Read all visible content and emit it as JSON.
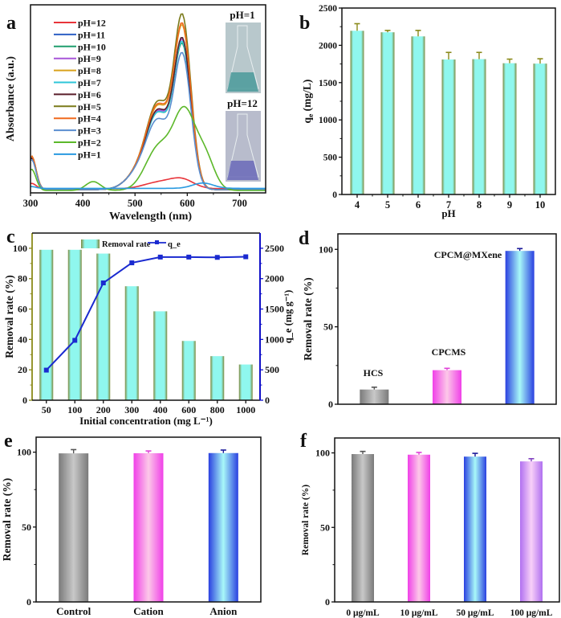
{
  "figure": {
    "panel_labels": [
      "a",
      "b",
      "c",
      "d",
      "e",
      "f"
    ]
  },
  "colors": {
    "cyan_fill": "#8ff7ee",
    "olive_edge": "#7e8a3e",
    "blue_axis": "#1010c8",
    "olive_axis": "#8a8a1a",
    "gray_bar": "#a8a8a8",
    "pink_bar": "#f59af0",
    "blue_bar": "#4a6bf0",
    "violet_bar": "#d8a8f8"
  },
  "chart_data": [
    {
      "id": "a",
      "type": "line",
      "title": "",
      "xlabel": "Wavelength (nm)",
      "ylabel": "Absorbance (a.u.)",
      "xlim": [
        300,
        750
      ],
      "xticks": [
        300,
        400,
        500,
        600,
        700
      ],
      "yticks": [],
      "legend_placement": "top-left",
      "inset_labels": [
        "pH=1",
        "pH=12"
      ],
      "series": [
        {
          "name": "pH=12",
          "color": "#e8343a",
          "peak_nm": 590,
          "peak": 0.05,
          "shoulder": 0.035,
          "edge300": 0.06
        },
        {
          "name": "pH=11",
          "color": "#2d5fc4",
          "peak_nm": 590,
          "peak": 0.82,
          "shoulder": 0.53,
          "edge300": 0.18
        },
        {
          "name": "pH=10",
          "color": "#1f9e6e",
          "peak_nm": 590,
          "peak": 0.79,
          "shoulder": 0.52,
          "edge300": 0.18
        },
        {
          "name": "pH=9",
          "color": "#a855d8",
          "peak_nm": 590,
          "peak": 0.81,
          "shoulder": 0.53,
          "edge300": 0.18
        },
        {
          "name": "pH=8",
          "color": "#d9a21c",
          "peak_nm": 590,
          "peak": 0.89,
          "shoulder": 0.57,
          "edge300": 0.19
        },
        {
          "name": "pH=7",
          "color": "#2ec6d8",
          "peak_nm": 590,
          "peak": 0.8,
          "shoulder": 0.52,
          "edge300": 0.18
        },
        {
          "name": "pH=6",
          "color": "#5a1e2a",
          "peak_nm": 590,
          "peak": 0.82,
          "shoulder": 0.54,
          "edge300": 0.18
        },
        {
          "name": "pH=5",
          "color": "#7a7a1a",
          "peak_nm": 590,
          "peak": 0.95,
          "shoulder": 0.6,
          "edge300": 0.19
        },
        {
          "name": "pH=4",
          "color": "#f06a1e",
          "peak_nm": 590,
          "peak": 0.9,
          "shoulder": 0.58,
          "edge300": 0.19
        },
        {
          "name": "pH=3",
          "color": "#5a8ed0",
          "peak_nm": 590,
          "peak": 0.74,
          "shoulder": 0.47,
          "edge300": 0.17
        },
        {
          "name": "pH=2",
          "color": "#5cb82a",
          "peak_nm": 595,
          "peak": 0.43,
          "shoulder": 0.24,
          "edge300": 0.12
        },
        {
          "name": "pH=1",
          "color": "#2a9ae0",
          "peak_nm": 630,
          "peak": 0.025,
          "shoulder": 0.01,
          "edge300": 0.01
        }
      ]
    },
    {
      "id": "b",
      "type": "bar",
      "xlabel": "pH",
      "ylabel": "q_e (mg/L)",
      "ylim": [
        0,
        2500
      ],
      "yticks": [
        0,
        500,
        1000,
        1500,
        2000,
        2500
      ],
      "categories": [
        "4",
        "5",
        "6",
        "7",
        "8",
        "9",
        "10"
      ],
      "values": [
        2195,
        2175,
        2120,
        1810,
        1815,
        1760,
        1755
      ],
      "errors": [
        95,
        25,
        80,
        95,
        90,
        55,
        65
      ]
    },
    {
      "id": "c",
      "type": "bar",
      "xlabel": "Initial concentration (mg L⁻¹)",
      "ylabel": "Removal rate (%)",
      "y2label": "q_e (mg g⁻¹)",
      "ylim": [
        0,
        110
      ],
      "yticks": [
        0,
        20,
        40,
        60,
        80,
        100
      ],
      "y2lim": [
        0,
        2750
      ],
      "y2ticks": [
        0,
        500,
        1000,
        1500,
        2000,
        2500
      ],
      "categories": [
        "50",
        "100",
        "200",
        "300",
        "400",
        "600",
        "800",
        "1000"
      ],
      "legend": [
        "Removal rate",
        "q_e"
      ],
      "legend_placement": "top-center",
      "series": [
        {
          "name": "Removal rate",
          "axis": "left",
          "kind": "bar",
          "values": [
            99,
            99,
            96.5,
            75,
            58.5,
            39,
            29,
            23.5
          ]
        },
        {
          "name": "q_e",
          "axis": "right",
          "kind": "line",
          "values": [
            495,
            985,
            1930,
            2260,
            2355,
            2355,
            2350,
            2360
          ]
        }
      ]
    },
    {
      "id": "d",
      "type": "bar",
      "xlabel": "",
      "ylabel": "Removal rate (%)",
      "ylim": [
        0,
        110
      ],
      "yticks": [
        0,
        50,
        100
      ],
      "categories": [
        "HCS",
        "CPCMS",
        "CPCM@MXene"
      ],
      "values": [
        9.5,
        22,
        99
      ],
      "errors": [
        1.5,
        1.2,
        1.5
      ],
      "bar_colors": [
        "gray",
        "pink",
        "blue"
      ]
    },
    {
      "id": "e",
      "type": "bar",
      "xlabel": "",
      "ylabel": "Removal rate (%)",
      "ylim": [
        0,
        110
      ],
      "yticks": [
        0,
        50,
        100
      ],
      "categories": [
        "Control",
        "Cation",
        "Anion"
      ],
      "values": [
        99.2,
        99.3,
        99.4
      ],
      "errors": [
        2.5,
        1.5,
        2.0
      ],
      "bar_colors": [
        "gray",
        "pink",
        "blue"
      ]
    },
    {
      "id": "f",
      "type": "bar",
      "xlabel": "",
      "ylabel": "Removal rate (%)",
      "ylim": [
        0,
        110
      ],
      "yticks": [
        0,
        50,
        100
      ],
      "categories": [
        "0 μg/mL",
        "10 μg/mL",
        "50 μg/mL",
        "100 μg/mL"
      ],
      "values": [
        99.2,
        98.8,
        97.5,
        94.3
      ],
      "errors": [
        1.8,
        1.5,
        2.2,
        1.8
      ],
      "bar_colors": [
        "gray",
        "pink",
        "blue",
        "violet"
      ]
    }
  ]
}
